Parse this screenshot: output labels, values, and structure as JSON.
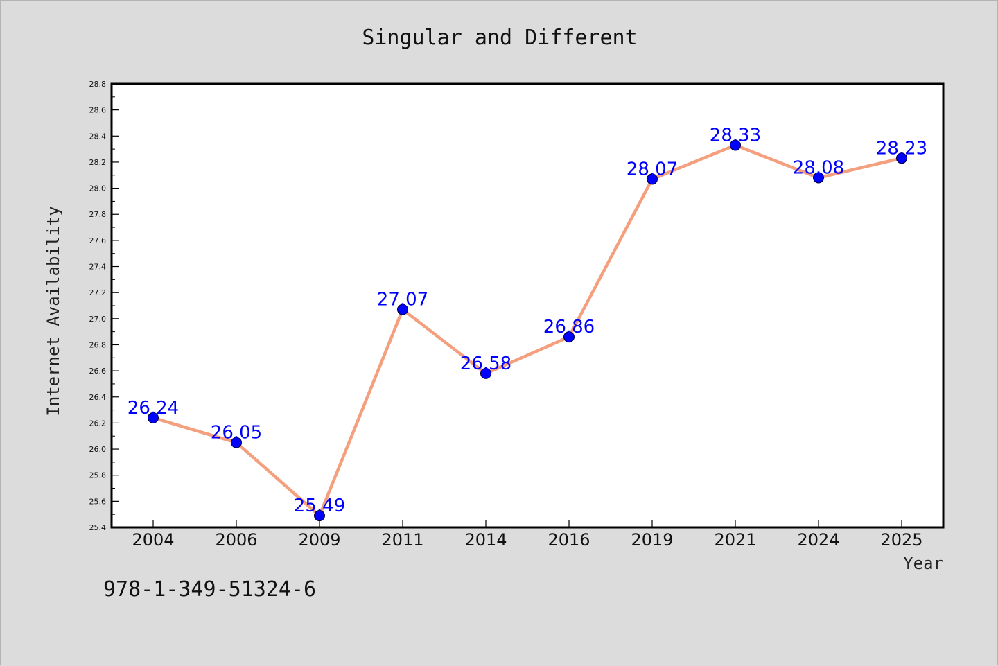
{
  "chart_data": {
    "type": "line",
    "title": "Singular and Different",
    "xlabel": "Year",
    "ylabel": "Internet Availability",
    "categories": [
      "2004",
      "2006",
      "2009",
      "2011",
      "2014",
      "2016",
      "2019",
      "2021",
      "2024",
      "2025"
    ],
    "series": [
      {
        "values": [
          26.24,
          26.05,
          25.49,
          27.07,
          26.58,
          26.86,
          28.07,
          28.33,
          28.08,
          28.23
        ]
      }
    ],
    "data_labels": [
      "26.24",
      "26.05",
      "25.49",
      "27.07",
      "26.58",
      "26.86",
      "28.07",
      "28.33",
      "28.08",
      "28.23"
    ],
    "ylim": [
      25.4,
      28.8
    ],
    "y_ticks": [
      "25.4",
      "25.6",
      "25.8",
      "26.0",
      "26.2",
      "26.4",
      "26.6",
      "26.8",
      "27.0",
      "27.2",
      "27.4",
      "27.6",
      "27.8",
      "28.0",
      "28.2",
      "28.4",
      "28.6",
      "28.8"
    ],
    "grid": false,
    "line_color": "#f4a07e",
    "marker_color": "#0000ff",
    "label_color": "#0000ff",
    "background_color": "#dcdcdc",
    "plot_background_color": "#ffffff"
  },
  "footer": {
    "identifier": "978-1-349-51324-6"
  }
}
